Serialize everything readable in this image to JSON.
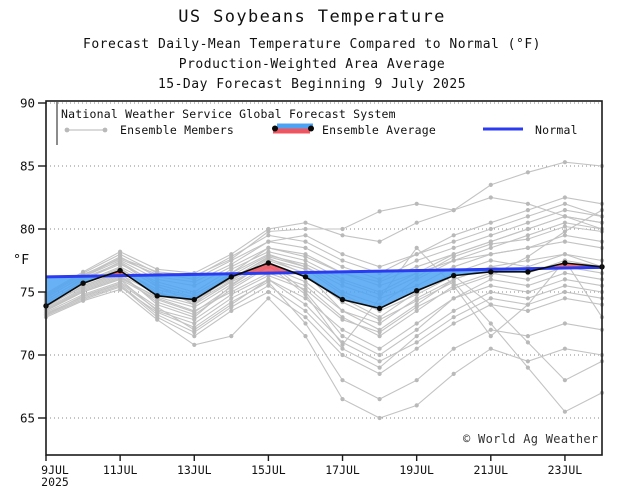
{
  "header": {
    "title": "US Soybeans Temperature",
    "subtitle1": "Forecast Daily-Mean Temperature Compared to Normal (°F)",
    "subtitle2": "Production-Weighted Area Average",
    "subtitle3": "15-Day Forecast Beginning 9 July 2025"
  },
  "legend": {
    "header": "National Weather Service Global Forecast System",
    "members_label": "Ensemble Members",
    "average_label": "Ensemble Average",
    "normal_label": "Normal"
  },
  "watermark": "© World Ag Weather",
  "colors": {
    "normal_line": "#2b3bf2",
    "fill_below_normal": "#4da3f2",
    "fill_above_normal": "#f0545f",
    "average_line": "#0a0a0a",
    "member_line": "#c3c3c3",
    "member_dot": "#b9b9b9",
    "frame": "#1a1a1a",
    "grid": "#8a8a8a"
  },
  "chart_data": {
    "type": "line",
    "title": "US Soybeans Temperature",
    "ylabel": "°F",
    "ylim": [
      62,
      90.2
    ],
    "yticks": [
      65,
      70,
      75,
      80,
      85,
      90
    ],
    "days": 16,
    "x_tick_days": [
      0,
      2,
      4,
      6,
      8,
      10,
      12,
      14
    ],
    "x_tick_labels": [
      "9JUL",
      "11JUL",
      "13JUL",
      "15JUL",
      "17JUL",
      "19JUL",
      "21JUL",
      "23JUL"
    ],
    "x_year_label": "2025",
    "grid": "dotted-horizontal",
    "legend_position": "top-inside",
    "series": [
      {
        "name": "Ensemble Average",
        "values": [
          73.9,
          75.7,
          76.7,
          74.7,
          74.4,
          76.2,
          77.3,
          76.2,
          74.4,
          73.7,
          75.1,
          76.3,
          76.6,
          76.6,
          77.3,
          77.0
        ]
      },
      {
        "name": "Normal",
        "endpoints": [
          76.2,
          76.95
        ]
      }
    ],
    "members": [
      [
        74.6,
        76.2,
        77.5,
        76.0,
        75.5,
        77.0,
        78.5,
        78.0,
        76.5,
        75.5,
        76.5,
        77.5,
        78.0,
        78.5,
        79.0,
        78.5
      ],
      [
        73.5,
        75.0,
        76.0,
        73.5,
        72.5,
        74.5,
        76.0,
        74.5,
        72.0,
        70.5,
        72.5,
        74.5,
        75.5,
        75.0,
        76.0,
        75.5
      ],
      [
        74.2,
        75.8,
        77.0,
        75.5,
        74.0,
        76.5,
        78.0,
        77.0,
        75.0,
        74.0,
        76.0,
        77.5,
        78.5,
        79.5,
        80.5,
        80.0
      ],
      [
        73.8,
        75.5,
        76.5,
        74.0,
        73.0,
        75.5,
        77.5,
        76.5,
        73.5,
        72.0,
        74.0,
        76.0,
        77.0,
        77.5,
        78.0,
        77.0
      ],
      [
        74.8,
        76.5,
        78.0,
        76.5,
        76.0,
        77.5,
        79.0,
        79.5,
        78.0,
        77.0,
        78.0,
        79.0,
        80.0,
        81.0,
        82.0,
        81.0
      ],
      [
        73.2,
        74.5,
        75.5,
        73.0,
        71.5,
        73.5,
        75.0,
        73.0,
        70.0,
        68.5,
        70.5,
        72.5,
        74.0,
        73.5,
        74.5,
        74.0
      ],
      [
        74.4,
        76.0,
        77.2,
        75.8,
        75.0,
        76.8,
        78.2,
        77.5,
        76.0,
        75.0,
        76.5,
        78.0,
        79.0,
        80.0,
        81.0,
        80.5
      ],
      [
        73.6,
        75.2,
        76.2,
        74.5,
        73.5,
        75.0,
        76.5,
        75.5,
        73.0,
        71.5,
        73.5,
        75.5,
        76.5,
        76.0,
        77.0,
        76.5
      ],
      [
        74.0,
        75.6,
        76.8,
        75.2,
        74.5,
        76.0,
        77.8,
        77.0,
        75.5,
        74.5,
        75.5,
        77.0,
        78.0,
        78.5,
        79.5,
        79.0
      ],
      [
        73.4,
        74.8,
        75.8,
        73.8,
        72.0,
        74.0,
        76.0,
        74.0,
        71.0,
        69.5,
        71.0,
        73.0,
        74.5,
        74.0,
        75.0,
        74.5
      ],
      [
        74.5,
        76.3,
        77.8,
        76.2,
        75.8,
        77.2,
        79.0,
        78.5,
        77.0,
        76.0,
        77.5,
        78.5,
        79.5,
        80.5,
        81.5,
        81.0
      ],
      [
        73.9,
        75.4,
        76.4,
        74.8,
        74.0,
        75.8,
        77.2,
        76.2,
        74.5,
        73.0,
        75.0,
        76.5,
        77.5,
        77.0,
        78.0,
        77.5
      ],
      [
        74.1,
        75.9,
        77.4,
        75.6,
        74.8,
        76.5,
        78.5,
        77.8,
        76.5,
        75.8,
        77.0,
        78.0,
        79.0,
        80.0,
        81.0,
        80.0
      ],
      [
        73.3,
        74.6,
        75.6,
        73.2,
        71.8,
        73.8,
        75.5,
        73.5,
        70.5,
        69.0,
        71.5,
        73.5,
        75.0,
        74.5,
        75.5,
        75.0
      ],
      [
        74.7,
        76.4,
        77.6,
        76.4,
        76.2,
        77.8,
        79.5,
        79.0,
        77.5,
        76.5,
        78.0,
        79.5,
        80.5,
        81.5,
        82.5,
        82.0
      ],
      [
        73.7,
        75.3,
        76.3,
        74.2,
        73.2,
        75.2,
        77.0,
        75.8,
        73.5,
        72.5,
        74.5,
        76.0,
        77.0,
        76.5,
        77.5,
        77.0
      ],
      [
        73.0,
        74.3,
        75.2,
        72.8,
        70.8,
        71.5,
        74.5,
        71.5,
        66.5,
        65.0,
        66.0,
        68.5,
        70.5,
        69.5,
        70.5,
        70.0
      ],
      [
        74.9,
        76.6,
        78.2,
        76.8,
        76.5,
        78.0,
        80.0,
        80.5,
        79.5,
        79.0,
        80.5,
        81.5,
        83.5,
        84.5,
        85.3,
        85.0
      ],
      [
        74.3,
        76.1,
        77.3,
        75.4,
        74.6,
        76.3,
        77.9,
        77.2,
        75.8,
        74.8,
        76.2,
        77.8,
        78.8,
        79.2,
        80.2,
        79.8
      ],
      [
        73.5,
        75.1,
        76.1,
        74.6,
        73.8,
        75.6,
        77.4,
        75.0,
        71.5,
        70.0,
        72.0,
        74.5,
        76.0,
        75.5,
        76.5,
        76.0
      ],
      [
        74.2,
        75.7,
        76.9,
        75.0,
        74.2,
        75.9,
        77.6,
        76.8,
        74.8,
        73.5,
        74.8,
        76.3,
        74.0,
        71.0,
        68.0,
        69.5
      ],
      [
        73.8,
        75.5,
        76.6,
        74.9,
        74.3,
        76.1,
        77.7,
        76.4,
        74.2,
        72.8,
        74.3,
        75.8,
        72.5,
        69.0,
        65.5,
        67.0
      ],
      [
        73.1,
        74.4,
        75.4,
        73.4,
        72.2,
        74.2,
        75.8,
        72.5,
        68.0,
        66.5,
        68.0,
        70.5,
        72.0,
        71.5,
        72.5,
        72.0
      ],
      [
        74.6,
        76.2,
        77.7,
        76.6,
        76.3,
        77.6,
        79.8,
        80.0,
        80.0,
        81.4,
        82.0,
        81.5,
        82.5,
        82.0,
        81.0,
        80.5
      ],
      [
        73.6,
        75.0,
        76.0,
        74.4,
        73.4,
        75.4,
        77.1,
        74.8,
        70.8,
        74.5,
        78.5,
        75.5,
        71.5,
        74.0,
        77.5,
        73.0
      ],
      [
        73.2,
        74.7,
        75.7,
        73.6,
        72.8,
        74.8,
        76.3,
        75.2,
        72.8,
        71.8,
        73.8,
        75.3,
        76.3,
        77.8,
        79.8,
        81.5
      ]
    ]
  }
}
